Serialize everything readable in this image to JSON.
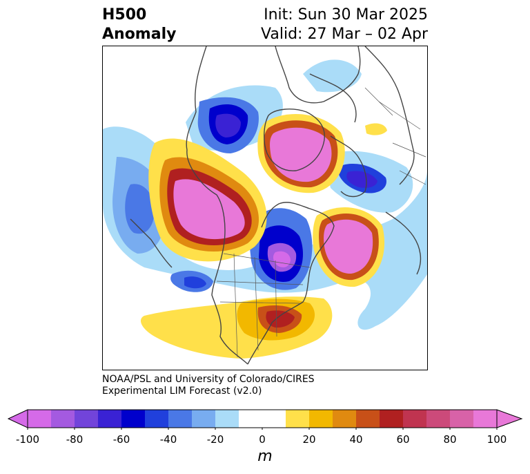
{
  "title": {
    "line1": "H500",
    "line2": "Anomaly",
    "init": "Init: Sun 30 Mar 2025",
    "valid": "Valid: 27 Mar – 02 Apr"
  },
  "credit": {
    "line1": "NOAA/PSL and University of Colorado/CIRES",
    "line2": "Experimental LIM Forecast (v2.0)"
  },
  "colorbar": {
    "unit": "m",
    "ticks": [
      "-100",
      "-80",
      "-60",
      "-40",
      "-20",
      "0",
      "20",
      "40",
      "60",
      "80",
      "100"
    ],
    "colors": [
      "#d56ae8",
      "#a45ae0",
      "#7244da",
      "#3a22d4",
      "#0000cc",
      "#2040dc",
      "#4a78e6",
      "#78acf0",
      "#aadcf8",
      "#ffffff",
      "#ffffff",
      "#ffe04a",
      "#f2b800",
      "#e08a10",
      "#c85018",
      "#b02020",
      "#c03450",
      "#cc4a7a",
      "#d862a8",
      "#e878d8"
    ],
    "under_color": "#d56ae8",
    "over_color": "#e878d8"
  },
  "map": {
    "projection": "north polar stereographic",
    "coastline_color": "#444444"
  }
}
